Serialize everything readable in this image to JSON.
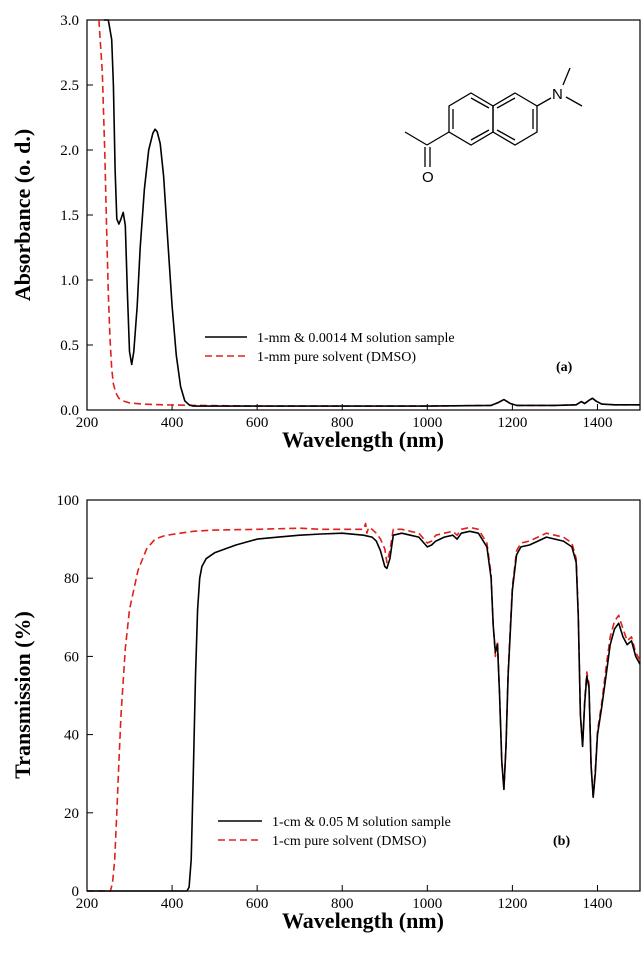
{
  "chart_data": [
    {
      "type": "line",
      "panel_label": "(a)",
      "xlabel": "Wavelength (nm)",
      "ylabel": "Absorbance (o. d.)",
      "xlim": [
        200,
        1500
      ],
      "ylim": [
        0,
        3.0
      ],
      "x_ticks": [
        200,
        400,
        600,
        800,
        1000,
        1200,
        1400
      ],
      "y_ticks": [
        0.0,
        0.5,
        1.0,
        1.5,
        2.0,
        2.5,
        3.0
      ],
      "y_tick_labels": [
        "0.0",
        "0.5",
        "1.0",
        "1.5",
        "2.0",
        "2.5",
        "3.0"
      ],
      "grid": false,
      "legend_position": "middle-center",
      "inset": "molecular structure (6-dimethylamino-2-acetylnaphthalene)",
      "inset_atom_labels": {
        "nitrogen": "N",
        "oxygen": "O"
      },
      "series": [
        {
          "name": "1-mm & 0.0014 M solution sample",
          "color": "#000000",
          "style": "solid",
          "x": [
            240,
            250,
            258,
            262,
            266,
            270,
            275,
            280,
            285,
            290,
            295,
            300,
            305,
            310,
            318,
            325,
            335,
            345,
            355,
            360,
            365,
            372,
            380,
            390,
            400,
            410,
            420,
            430,
            440,
            450,
            480,
            600,
            800,
            1000,
            1150,
            1165,
            1180,
            1195,
            1210,
            1300,
            1350,
            1362,
            1370,
            1380,
            1388,
            1396,
            1410,
            1440,
            1500
          ],
          "y": [
            3.0,
            3.0,
            2.85,
            2.5,
            1.85,
            1.47,
            1.43,
            1.47,
            1.52,
            1.42,
            0.9,
            0.45,
            0.35,
            0.45,
            0.8,
            1.25,
            1.7,
            2.0,
            2.13,
            2.16,
            2.14,
            2.05,
            1.8,
            1.3,
            0.8,
            0.42,
            0.18,
            0.07,
            0.04,
            0.03,
            0.03,
            0.03,
            0.03,
            0.03,
            0.035,
            0.055,
            0.08,
            0.05,
            0.035,
            0.035,
            0.04,
            0.065,
            0.05,
            0.075,
            0.09,
            0.07,
            0.045,
            0.04,
            0.04
          ]
        },
        {
          "name": "1-mm pure solvent (DMSO)",
          "color": "#e0201b",
          "style": "dashed",
          "x": [
            228,
            236,
            242,
            246,
            250,
            254,
            258,
            262,
            268,
            275,
            285,
            300,
            330,
            380,
            450,
            600,
            800,
            1000,
            1150,
            1165,
            1180,
            1195,
            1210,
            1300,
            1350,
            1362,
            1370,
            1380,
            1388,
            1396,
            1410,
            1440,
            1500
          ],
          "y": [
            3.0,
            2.6,
            1.95,
            1.4,
            0.9,
            0.55,
            0.32,
            0.2,
            0.13,
            0.09,
            0.07,
            0.055,
            0.045,
            0.04,
            0.035,
            0.03,
            0.03,
            0.03,
            0.035,
            0.055,
            0.08,
            0.05,
            0.035,
            0.035,
            0.04,
            0.065,
            0.05,
            0.075,
            0.09,
            0.07,
            0.045,
            0.04,
            0.04
          ]
        }
      ]
    },
    {
      "type": "line",
      "panel_label": "(b)",
      "xlabel": "Wavelength (nm)",
      "ylabel": "Transmission (%)",
      "xlim": [
        200,
        1500
      ],
      "ylim": [
        0,
        100
      ],
      "x_ticks": [
        200,
        400,
        600,
        800,
        1000,
        1200,
        1400
      ],
      "y_ticks": [
        0,
        20,
        40,
        60,
        80,
        100
      ],
      "y_tick_labels": [
        "0",
        "20",
        "40",
        "60",
        "80",
        "100"
      ],
      "grid": false,
      "legend_position": "bottom-center",
      "series": [
        {
          "name": "1-cm & 0.05 M solution sample",
          "color": "#000000",
          "style": "solid",
          "x": [
            200,
            300,
            400,
            435,
            440,
            445,
            450,
            455,
            460,
            465,
            470,
            480,
            500,
            550,
            600,
            650,
            700,
            750,
            800,
            850,
            870,
            880,
            890,
            900,
            905,
            912,
            920,
            940,
            960,
            980,
            1000,
            1010,
            1020,
            1040,
            1060,
            1070,
            1080,
            1100,
            1120,
            1140,
            1150,
            1155,
            1160,
            1165,
            1170,
            1175,
            1180,
            1185,
            1190,
            1200,
            1210,
            1220,
            1240,
            1260,
            1280,
            1300,
            1320,
            1340,
            1350,
            1355,
            1360,
            1365,
            1370,
            1375,
            1380,
            1385,
            1390,
            1395,
            1400,
            1410,
            1420,
            1430,
            1440,
            1450,
            1460,
            1470,
            1480,
            1490,
            1500
          ],
          "y": [
            0,
            0,
            0,
            0,
            1,
            8,
            30,
            55,
            72,
            80,
            83,
            85,
            86.5,
            88.5,
            90,
            90.5,
            91,
            91.3,
            91.5,
            91,
            90.5,
            89.5,
            87,
            83,
            82.5,
            85,
            91,
            91.5,
            91,
            90.5,
            88,
            88.5,
            89.5,
            90.5,
            91,
            90,
            91.5,
            92,
            91.5,
            88,
            80,
            68,
            61,
            63,
            50,
            33,
            26,
            37,
            55,
            77,
            86,
            88,
            88.5,
            89.5,
            90.5,
            90,
            89.5,
            88,
            84,
            70,
            45,
            37,
            48,
            55,
            52,
            32,
            24,
            30,
            40,
            47,
            55,
            63,
            67,
            68.5,
            65,
            63,
            64,
            60,
            58
          ]
        },
        {
          "name": "1-cm pure solvent (DMSO)",
          "color": "#e0201b",
          "style": "dashed",
          "x": [
            200,
            240,
            255,
            260,
            265,
            270,
            275,
            280,
            290,
            300,
            320,
            340,
            360,
            380,
            400,
            450,
            500,
            600,
            700,
            750,
            800,
            850,
            855,
            858,
            862,
            870,
            880,
            890,
            900,
            905,
            912,
            920,
            940,
            960,
            980,
            1000,
            1010,
            1020,
            1040,
            1060,
            1070,
            1080,
            1100,
            1120,
            1140,
            1150,
            1155,
            1160,
            1165,
            1170,
            1175,
            1180,
            1185,
            1190,
            1200,
            1210,
            1220,
            1240,
            1260,
            1280,
            1300,
            1320,
            1340,
            1350,
            1355,
            1360,
            1365,
            1370,
            1375,
            1380,
            1385,
            1390,
            1395,
            1400,
            1410,
            1420,
            1430,
            1440,
            1450,
            1460,
            1470,
            1480,
            1490,
            1500
          ],
          "y": [
            0,
            0,
            0,
            2,
            8,
            20,
            33,
            45,
            62,
            72,
            82,
            87.5,
            90,
            90.8,
            91.2,
            92,
            92.3,
            92.5,
            92.8,
            92.5,
            92.5,
            92.5,
            94,
            91.5,
            93,
            92.5,
            91.5,
            90,
            87.5,
            84,
            87,
            92.5,
            92.5,
            92,
            91.5,
            89,
            89.5,
            91,
            91.5,
            92,
            91,
            92.5,
            93,
            92.5,
            89,
            81,
            68,
            60,
            64,
            50,
            33,
            26,
            37,
            56,
            78,
            87,
            89,
            89.5,
            90.5,
            91.5,
            91,
            90.5,
            89,
            85,
            71,
            45,
            37,
            49,
            56,
            53,
            32,
            24,
            31,
            41,
            48,
            57,
            65,
            69,
            70.5,
            67,
            64,
            65,
            61,
            59
          ]
        }
      ]
    }
  ]
}
